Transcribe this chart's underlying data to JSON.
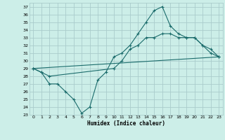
{
  "xlabel": "Humidex (Indice chaleur)",
  "background_color": "#cceee8",
  "grid_color": "#aacccc",
  "line_color": "#1a6b6b",
  "xlim": [
    -0.5,
    23.5
  ],
  "ylim": [
    23,
    37.5
  ],
  "yticks": [
    23,
    24,
    25,
    26,
    27,
    28,
    29,
    30,
    31,
    32,
    33,
    34,
    35,
    36,
    37
  ],
  "xticks": [
    0,
    1,
    2,
    3,
    4,
    5,
    6,
    7,
    8,
    9,
    10,
    11,
    12,
    13,
    14,
    15,
    16,
    17,
    18,
    19,
    20,
    21,
    22,
    23
  ],
  "line1_x": [
    0,
    1,
    2,
    3,
    4,
    5,
    6,
    7,
    8,
    9,
    10,
    11,
    12,
    13,
    14,
    15,
    16,
    17,
    18,
    19,
    20,
    21,
    22,
    23
  ],
  "line1_y": [
    29,
    28.5,
    27,
    27,
    26,
    25,
    23.2,
    24,
    27.5,
    28.5,
    30.5,
    31,
    32,
    33.5,
    35,
    36.5,
    37,
    34.5,
    33.5,
    33,
    33,
    32,
    31,
    30.5
  ],
  "line2_x": [
    0,
    1,
    2,
    10,
    11,
    12,
    13,
    14,
    15,
    16,
    17,
    18,
    19,
    20,
    21,
    22,
    23
  ],
  "line2_y": [
    29,
    28.5,
    28,
    29,
    30,
    31.5,
    32,
    33,
    33,
    33.5,
    33.5,
    33,
    33,
    33,
    32,
    31.5,
    30.5
  ],
  "line3_x": [
    0,
    23
  ],
  "line3_y": [
    29,
    30.5
  ]
}
